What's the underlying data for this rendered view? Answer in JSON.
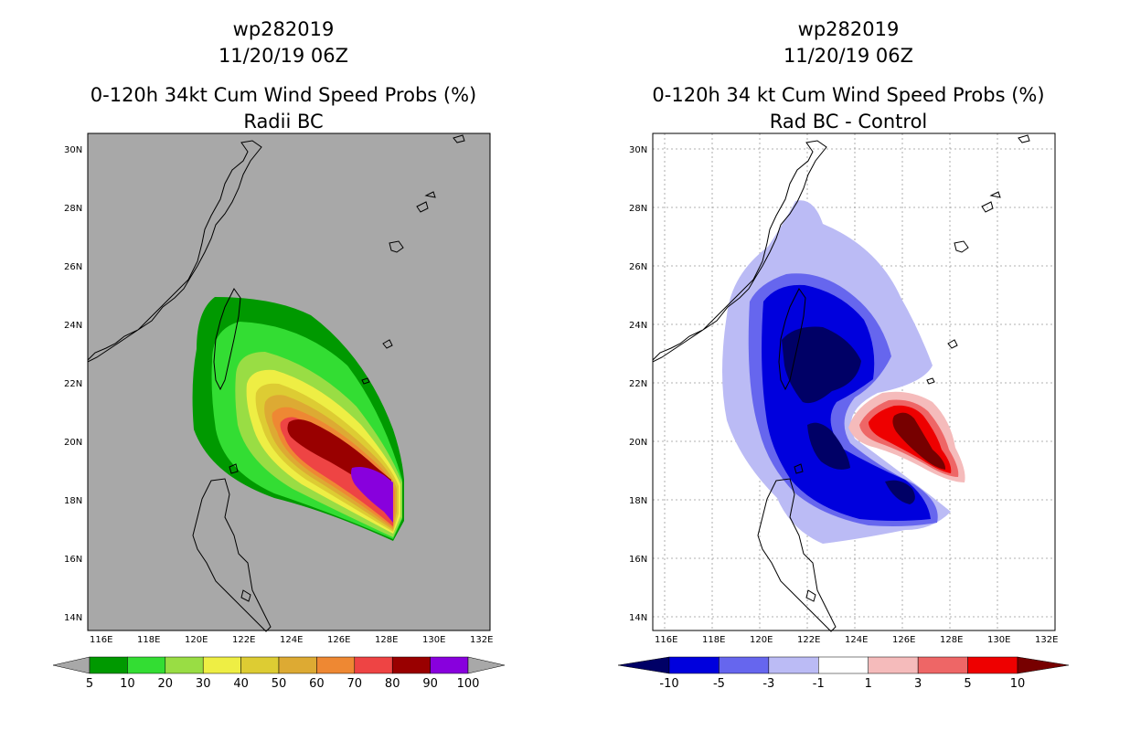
{
  "left_panel": {
    "title_line1": "wp282019",
    "title_line2": "11/20/19 06Z",
    "title_line3": "0-120h 34kt Cum Wind Speed Probs (%)",
    "title_line4": "Radii BC",
    "background_color": "#a8a8a8",
    "colorbar": {
      "levels": [
        "5",
        "10",
        "20",
        "30",
        "40",
        "50",
        "60",
        "70",
        "80",
        "90",
        "100"
      ],
      "colors": [
        "#009900",
        "#33dd33",
        "#99dd44",
        "#eeee44",
        "#ddcc33",
        "#ddaa33",
        "#ee8833",
        "#ee4444",
        "#990000",
        "#8800dd"
      ],
      "under_color": "#a8a8a8",
      "over_color": "#a8a8a8"
    }
  },
  "right_panel": {
    "title_line1": "wp282019",
    "title_line2": "11/20/19 06Z",
    "title_line3": "0-120h 34 kt Cum Wind Speed Probs (%)",
    "title_line4": "Rad BC - Control",
    "background_color": "#ffffff",
    "colorbar": {
      "levels": [
        "-10",
        "-5",
        "-3",
        "-1",
        "1",
        "3",
        "5",
        "10"
      ],
      "colors": [
        "#0000dd",
        "#6666ee",
        "#bbbbf5",
        "#ffffff",
        "#f5bbbb",
        "#ee6666",
        "#ee0000"
      ],
      "under_color": "#000066",
      "over_color": "#770000"
    }
  },
  "axes": {
    "lon_labels": [
      "116E",
      "118E",
      "120E",
      "122E",
      "124E",
      "126E",
      "128E",
      "130E",
      "132E"
    ],
    "lat_labels": [
      "14N",
      "16N",
      "18N",
      "20N",
      "22N",
      "24N",
      "26N",
      "28N",
      "30N"
    ]
  },
  "chart_data": [
    {
      "type": "heatmap",
      "title": "0-120h 34kt Cum Wind Speed Probs (%) - Radii BC",
      "storm": "wp282019",
      "init_time": "11/20/19 06Z",
      "xlim": [
        115.5,
        132.0
      ],
      "ylim": [
        13.5,
        30.5
      ],
      "contour_levels": [
        5,
        10,
        20,
        30,
        40,
        50,
        60,
        70,
        80,
        90,
        100
      ],
      "max_prob_center": {
        "lon": 127.7,
        "lat": 18.2,
        "value": 90
      }
    },
    {
      "type": "heatmap",
      "title": "0-120h 34 kt Cum Wind Speed Probs (%) - Rad BC - Control",
      "storm": "wp282019",
      "init_time": "11/20/19 06Z",
      "xlim": [
        115.5,
        132.0
      ],
      "ylim": [
        13.5,
        30.5
      ],
      "contour_levels": [
        -10,
        -5,
        -3,
        -1,
        1,
        3,
        5,
        10
      ],
      "min_diff_center": {
        "lon": 122.5,
        "lat": 22.5,
        "value": -10
      },
      "max_diff_center": {
        "lon": 126.3,
        "lat": 20.0,
        "value": 10
      }
    }
  ]
}
